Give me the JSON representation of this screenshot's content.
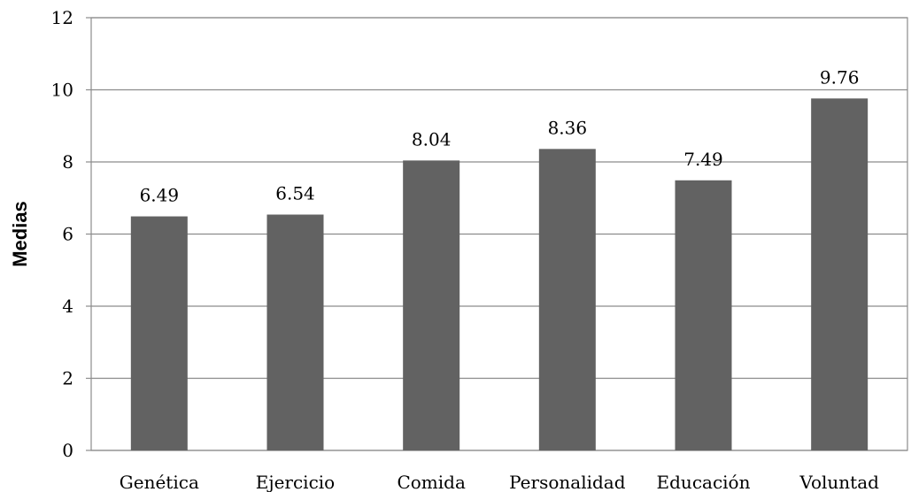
{
  "chart_data": {
    "type": "bar",
    "title": "",
    "xlabel": "",
    "ylabel": "Medias",
    "categories": [
      "Genética",
      "Ejercicio",
      "Comida",
      "Personalidad",
      "Educación",
      "Voluntad"
    ],
    "values": [
      6.49,
      6.54,
      8.04,
      8.36,
      7.49,
      9.76
    ],
    "value_labels": [
      "6.49",
      "6.54",
      "8.04",
      "8.36",
      "7.49",
      "9.76"
    ],
    "ylim": [
      0,
      12
    ],
    "yticks": [
      0,
      2,
      4,
      6,
      8,
      10,
      12
    ],
    "grid": true,
    "legend": "none",
    "bar_color": "#626262",
    "grid_color": "#8c8c8c"
  }
}
